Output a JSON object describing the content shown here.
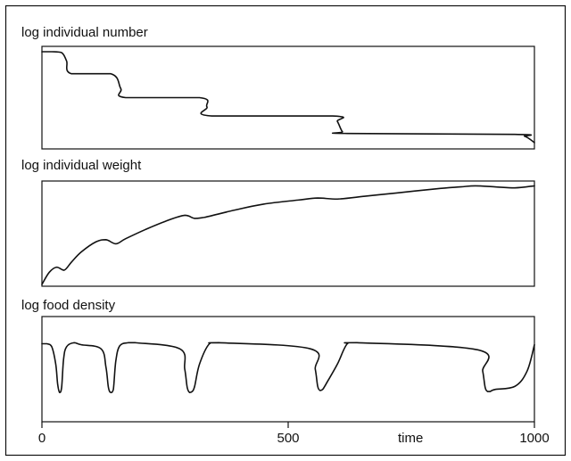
{
  "chart_data": [
    {
      "type": "line",
      "title": "log individual number",
      "xlim": [
        0,
        1000
      ],
      "x": [
        0,
        20,
        40,
        50,
        60,
        140,
        160,
        170,
        320,
        335,
        345,
        590,
        600,
        610,
        620,
        960,
        980,
        990,
        1000
      ],
      "values": [
        1.0,
        1.0,
        0.99,
        0.9,
        0.76,
        0.76,
        0.6,
        0.5,
        0.5,
        0.4,
        0.3,
        0.3,
        0.24,
        0.13,
        0.11,
        0.1,
        0.08,
        0.05,
        0.01
      ]
    },
    {
      "type": "line",
      "title": "log individual weight",
      "xlim": [
        0,
        1000
      ],
      "x": [
        0,
        15,
        30,
        45,
        60,
        80,
        110,
        130,
        150,
        170,
        210,
        250,
        290,
        310,
        330,
        390,
        450,
        520,
        560,
        600,
        660,
        720,
        800,
        850,
        880,
        920,
        960,
        1000
      ],
      "values": [
        0.0,
        0.12,
        0.17,
        0.14,
        0.22,
        0.32,
        0.42,
        0.44,
        0.4,
        0.45,
        0.54,
        0.62,
        0.68,
        0.65,
        0.66,
        0.73,
        0.79,
        0.83,
        0.85,
        0.84,
        0.87,
        0.9,
        0.94,
        0.96,
        0.97,
        0.96,
        0.95,
        0.97
      ]
    },
    {
      "type": "line",
      "title": "log food density",
      "xlim": [
        0,
        1000
      ],
      "x": [
        0,
        10,
        20,
        28,
        32,
        36,
        40,
        44,
        50,
        65,
        80,
        120,
        130,
        135,
        140,
        145,
        150,
        158,
        175,
        190,
        280,
        290,
        295,
        300,
        305,
        310,
        320,
        340,
        360,
        545,
        555,
        560,
        565,
        570,
        580,
        600,
        620,
        640,
        885,
        895,
        900,
        905,
        910,
        920,
        960,
        985,
        1000
      ],
      "values": [
        0.75,
        0.75,
        0.72,
        0.55,
        0.35,
        0.27,
        0.32,
        0.6,
        0.72,
        0.76,
        0.74,
        0.7,
        0.52,
        0.32,
        0.27,
        0.3,
        0.58,
        0.73,
        0.76,
        0.76,
        0.7,
        0.5,
        0.32,
        0.27,
        0.28,
        0.33,
        0.55,
        0.75,
        0.76,
        0.7,
        0.5,
        0.33,
        0.29,
        0.3,
        0.38,
        0.55,
        0.75,
        0.76,
        0.69,
        0.48,
        0.32,
        0.28,
        0.28,
        0.3,
        0.33,
        0.48,
        0.74
      ]
    }
  ],
  "x_axis": {
    "ticks": [
      {
        "value": 0,
        "label": "0"
      },
      {
        "value": 500,
        "label": "500"
      },
      {
        "value": 1000,
        "label": "1000"
      }
    ],
    "label": "time"
  }
}
